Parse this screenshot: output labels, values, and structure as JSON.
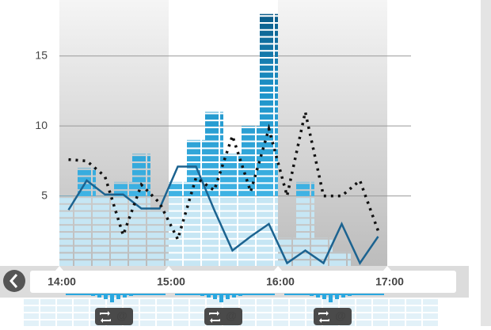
{
  "chart_data": {
    "type": "bar",
    "categories": [
      null,
      null,
      null,
      null,
      null,
      null,
      null,
      null,
      null,
      null,
      null,
      null,
      null,
      null,
      null,
      null,
      null,
      null
    ],
    "x_labels": [
      "14:00",
      "15:00",
      "16:00",
      "17:00"
    ],
    "series": [
      {
        "type": "bar",
        "color": "#2aa7df",
        "values": [
          5,
          7,
          5,
          6,
          8,
          4,
          6,
          9,
          11,
          8,
          10,
          18,
          2,
          6,
          2,
          1,
          0,
          0
        ]
      },
      {
        "type": "line",
        "color": "#1c6390",
        "values": [
          4.0,
          6.1,
          5.1,
          5.1,
          4.1,
          4.1,
          7.1,
          7.1,
          4.0,
          1.1,
          2.1,
          3.0,
          0.2,
          1.1,
          0.2,
          3.0,
          0.2,
          2.1
        ]
      },
      {
        "type": "dotted",
        "color": "#111111",
        "values": [
          7.6,
          7.5,
          6.4,
          2.2,
          5.8,
          4.5,
          1.9,
          6.3,
          5.4,
          9.3,
          5.3,
          9.8,
          5.0,
          11.0,
          5.0,
          5.0,
          6.1,
          2.5
        ]
      }
    ],
    "ylim": [
      0,
      19
    ],
    "yticks": [
      5,
      10,
      15
    ],
    "grid": true,
    "annotations": [
      "@",
      "@",
      "@"
    ]
  }
}
